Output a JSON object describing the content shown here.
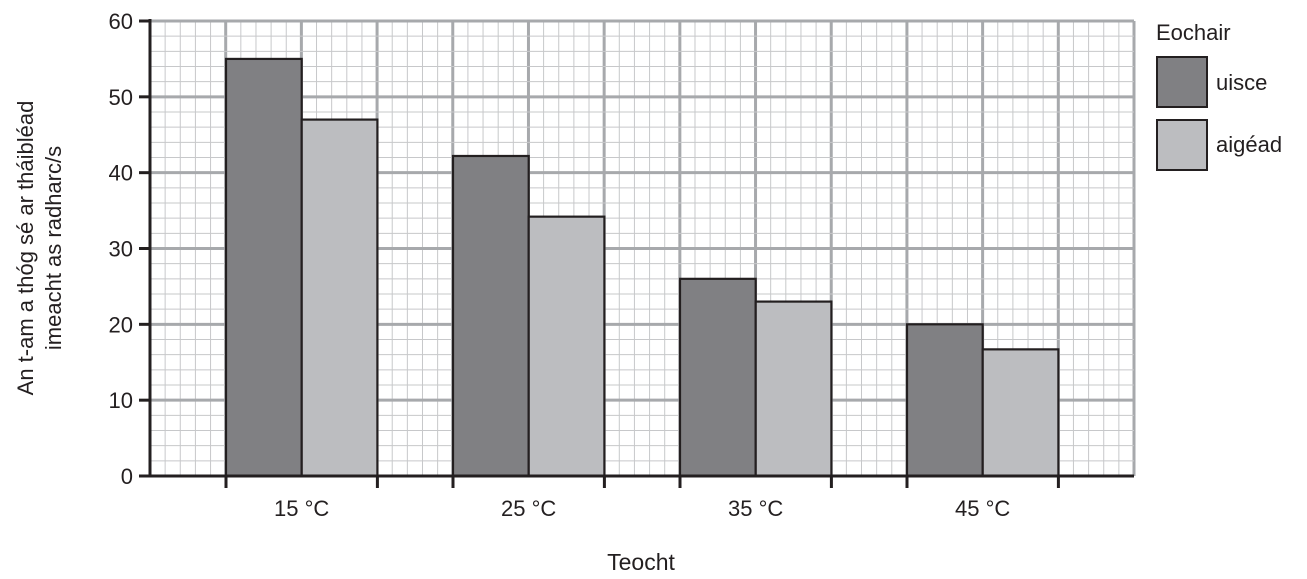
{
  "chart_data": {
    "type": "bar",
    "categories": [
      "15 °C",
      "25 °C",
      "35 °C",
      "45 °C"
    ],
    "series": [
      {
        "name": "uisce",
        "values": [
          55,
          42.2,
          26,
          20
        ],
        "color": "#808083"
      },
      {
        "name": "aigéad",
        "values": [
          47,
          34.2,
          23,
          16.7
        ],
        "color": "#bcbdc0"
      }
    ],
    "xlabel": "Teocht",
    "ylabel_lines": [
      "An t-am a thóg sé ar tháibléad",
      "imeacht as radharc/s"
    ],
    "ylim": [
      0,
      60
    ],
    "yticks": [
      "0",
      "10",
      "20",
      "30",
      "40",
      "50",
      "60"
    ],
    "grid": true,
    "legend": {
      "title": "Eochair",
      "position": "right"
    }
  }
}
